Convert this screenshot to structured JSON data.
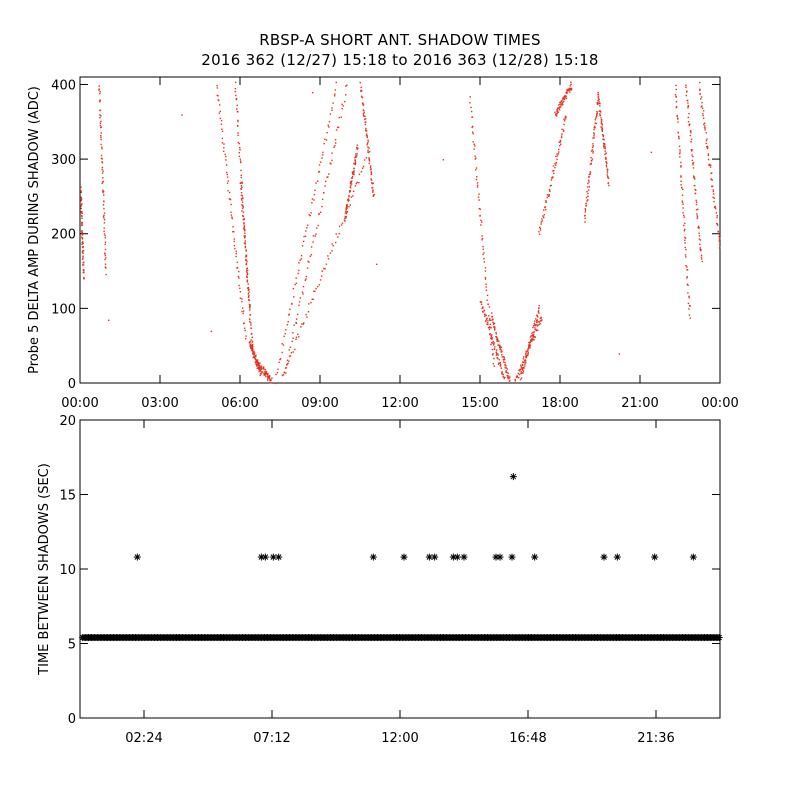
{
  "header": {
    "title": "RBSP-A SHORT ANT. SHADOW TIMES",
    "subtitle": "2016 362 (12/27) 15:18 to 2016 363 (12/28) 15:18"
  },
  "chart_data": [
    {
      "type": "scatter",
      "ylabel": "Probe 5 DELTA AMP DURING SHADOW (ADC)",
      "xlim": [
        0,
        24
      ],
      "ylim": [
        0,
        410
      ],
      "x_tick_values": [
        0,
        3,
        6,
        9,
        12,
        15,
        18,
        21,
        24
      ],
      "x_tick_labels": [
        "00:00",
        "03:00",
        "06:00",
        "09:00",
        "12:00",
        "15:00",
        "18:00",
        "21:00",
        "00:00"
      ],
      "y_tick_values": [
        0,
        100,
        200,
        300,
        400
      ],
      "y_tick_labels": [
        "0",
        "100",
        "200",
        "300",
        "400"
      ],
      "color": "#e8301c",
      "series": [
        {
          "x_start": 0.0,
          "x_end": 0.12,
          "y_start": 260,
          "y_end": 140
        },
        {
          "x_start": 0.7,
          "x_end": 0.95,
          "y_start": 400,
          "y_end": 150
        },
        {
          "x_start": 5.1,
          "x_end": 6.2,
          "y_start": 400,
          "y_end": 60
        },
        {
          "x_start": 5.8,
          "x_end": 6.35,
          "y_start": 400,
          "y_end": 90
        },
        {
          "x_start": 6.0,
          "x_end": 6.45,
          "y_start": 270,
          "y_end": 40
        },
        {
          "x_start": 6.35,
          "x_end": 6.75,
          "y_start": 55,
          "y_end": 15
        },
        {
          "x_start": 6.6,
          "x_end": 7.15,
          "y_start": 28,
          "y_end": 4
        },
        {
          "x_start": 7.3,
          "x_end": 9.6,
          "y_start": 3,
          "y_end": 400
        },
        {
          "x_start": 7.6,
          "x_end": 10.0,
          "y_start": 5,
          "y_end": 400
        },
        {
          "x_start": 7.5,
          "x_end": 10.7,
          "y_start": 3,
          "y_end": 300
        },
        {
          "x_start": 9.9,
          "x_end": 10.4,
          "y_start": 220,
          "y_end": 320
        },
        {
          "x_start": 10.5,
          "x_end": 11.0,
          "y_start": 400,
          "y_end": 250
        },
        {
          "x_start": 14.6,
          "x_end": 15.5,
          "y_start": 380,
          "y_end": 20
        },
        {
          "x_start": 15.0,
          "x_end": 15.9,
          "y_start": 110,
          "y_end": 5
        },
        {
          "x_start": 15.4,
          "x_end": 16.1,
          "y_start": 90,
          "y_end": 2
        },
        {
          "x_start": 16.3,
          "x_end": 17.3,
          "y_start": 2,
          "y_end": 90
        },
        {
          "x_start": 16.5,
          "x_end": 17.2,
          "y_start": 10,
          "y_end": 100
        },
        {
          "x_start": 17.2,
          "x_end": 18.2,
          "y_start": 200,
          "y_end": 360
        },
        {
          "x_start": 17.8,
          "x_end": 18.4,
          "y_start": 360,
          "y_end": 400
        },
        {
          "x_start": 18.9,
          "x_end": 19.4,
          "y_start": 220,
          "y_end": 380
        },
        {
          "x_start": 19.4,
          "x_end": 19.8,
          "y_start": 390,
          "y_end": 270
        },
        {
          "x_start": 22.3,
          "x_end": 22.85,
          "y_start": 400,
          "y_end": 90
        },
        {
          "x_start": 22.7,
          "x_end": 23.3,
          "y_start": 400,
          "y_end": 160
        },
        {
          "x_start": 23.2,
          "x_end": 24.0,
          "y_start": 400,
          "y_end": 180
        }
      ],
      "scattered_points": [
        {
          "x": 1.05,
          "y": 85
        },
        {
          "x": 3.8,
          "y": 360
        },
        {
          "x": 4.9,
          "y": 70
        },
        {
          "x": 8.7,
          "y": 390
        },
        {
          "x": 11.1,
          "y": 160
        },
        {
          "x": 13.6,
          "y": 300
        },
        {
          "x": 20.2,
          "y": 40
        },
        {
          "x": 21.4,
          "y": 310
        }
      ]
    },
    {
      "type": "scatter",
      "ylabel": "TIME BETWEEN SHADOWS (SEC)",
      "xlim": [
        0,
        24
      ],
      "ylim": [
        0,
        20
      ],
      "x_tick_values": [
        2.4,
        7.2,
        12.0,
        16.8,
        21.6
      ],
      "x_tick_labels": [
        "02:24",
        "07:12",
        "12:00",
        "16:48",
        "21:36"
      ],
      "y_tick_values": [
        0,
        5,
        10,
        15,
        20
      ],
      "y_tick_labels": [
        "0",
        "5",
        "10",
        "15",
        "20"
      ],
      "marker": "asterisk",
      "color": "#000000",
      "baseline": {
        "y": 5.4,
        "x_start": 0.1,
        "x_end": 24.0
      },
      "points": [
        {
          "x": 2.15,
          "y": 10.8
        },
        {
          "x": 6.8,
          "y": 10.8
        },
        {
          "x": 6.95,
          "y": 10.8
        },
        {
          "x": 7.25,
          "y": 10.8
        },
        {
          "x": 7.45,
          "y": 10.8
        },
        {
          "x": 11.0,
          "y": 10.8
        },
        {
          "x": 12.15,
          "y": 10.8
        },
        {
          "x": 13.1,
          "y": 10.8
        },
        {
          "x": 13.3,
          "y": 10.8
        },
        {
          "x": 14.0,
          "y": 10.8
        },
        {
          "x": 14.15,
          "y": 10.8
        },
        {
          "x": 14.4,
          "y": 10.8
        },
        {
          "x": 15.6,
          "y": 10.8
        },
        {
          "x": 15.75,
          "y": 10.8
        },
        {
          "x": 16.2,
          "y": 10.8
        },
        {
          "x": 16.25,
          "y": 16.2
        },
        {
          "x": 17.05,
          "y": 10.8
        },
        {
          "x": 19.65,
          "y": 10.8
        },
        {
          "x": 20.15,
          "y": 10.8
        },
        {
          "x": 21.55,
          "y": 10.8
        },
        {
          "x": 23.0,
          "y": 10.8
        }
      ]
    }
  ]
}
